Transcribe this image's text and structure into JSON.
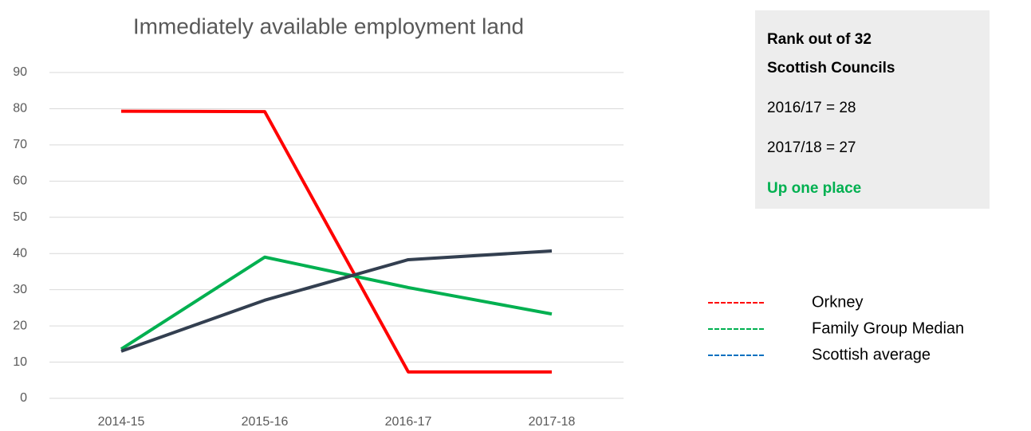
{
  "chart_data": {
    "type": "line",
    "title": "Immediately available employment land",
    "categories": [
      "2014-15",
      "2015-16",
      "2016-17",
      "2017-18"
    ],
    "series": [
      {
        "name": "Orkney",
        "color": "#ff0000",
        "legend_color": "#ff0000",
        "values": [
          79.3,
          79.2,
          7.3,
          7.3
        ]
      },
      {
        "name": "Family Group Median",
        "color": "#00b050",
        "legend_color": "#00b050",
        "values": [
          13.6,
          39.0,
          30.6,
          23.3
        ]
      },
      {
        "name": "Scottish average",
        "color": "#333f50",
        "legend_color": "#0070c0",
        "values": [
          13.0,
          27.1,
          38.3,
          40.7
        ]
      }
    ],
    "ylim": [
      0,
      90
    ],
    "yticks": [
      0,
      10,
      20,
      30,
      40,
      50,
      60,
      70,
      80,
      90
    ],
    "grid": true,
    "legend": "right",
    "annotations": {
      "heading": [
        "Rank out of 32",
        "Scottish Councils"
      ],
      "lines": [
        "2016/17 = 28",
        "2017/18 = 27"
      ],
      "highlight": "Up one place"
    }
  }
}
